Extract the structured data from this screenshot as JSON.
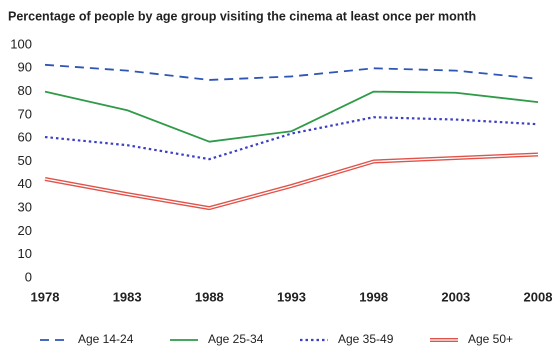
{
  "chart_data": {
    "type": "line",
    "title": "Percentage of people by age group visiting the cinema at least once per month",
    "x": [
      1978,
      1983,
      1988,
      1993,
      1998,
      2003,
      2008
    ],
    "xlim": [
      1978,
      2008
    ],
    "xticks": [
      1978,
      1983,
      1988,
      1993,
      1998,
      2003,
      2008
    ],
    "ylim": [
      0,
      100
    ],
    "yticks": [
      0,
      10,
      20,
      30,
      40,
      50,
      60,
      70,
      80,
      90,
      100
    ],
    "grid": false,
    "series": [
      {
        "name": "Age 14-24",
        "color": "#2f55b5",
        "dash": "dashed",
        "values": [
          91.5,
          89,
          85,
          86.5,
          90,
          89,
          85.5
        ]
      },
      {
        "name": "Age 25-34",
        "color": "#2f9a48",
        "dash": "solid",
        "values": [
          80,
          72,
          58.5,
          63,
          80,
          79.5,
          75.5
        ]
      },
      {
        "name": "Age 35-49",
        "color": "#3b3fc4",
        "dash": "dotted",
        "values": [
          60.5,
          57,
          51,
          62,
          69,
          68,
          66
        ]
      },
      {
        "name": "Age 50+",
        "color": "#e0534a",
        "dash": "double",
        "values": [
          42.5,
          36,
          30,
          39.5,
          50,
          51.5,
          53
        ]
      }
    ]
  }
}
